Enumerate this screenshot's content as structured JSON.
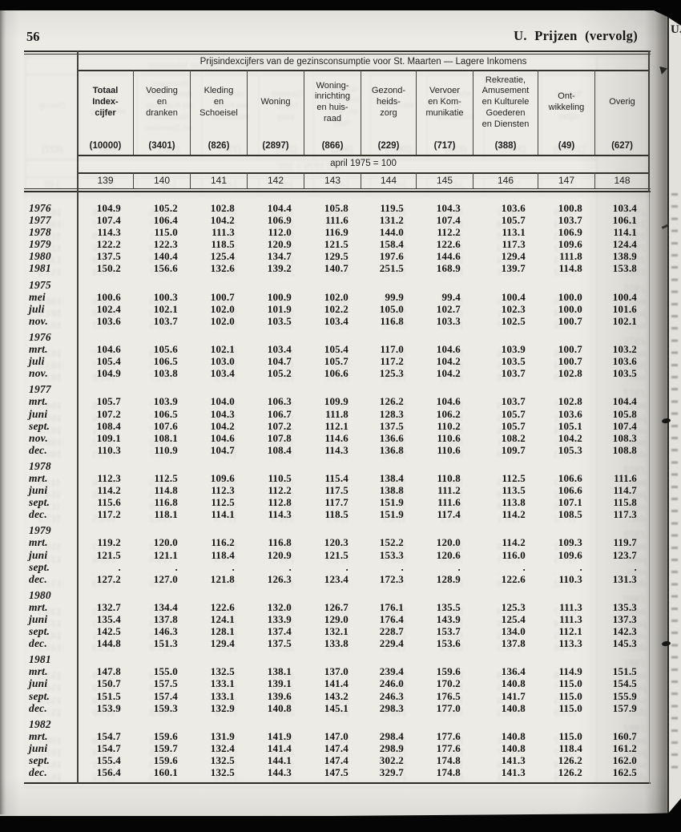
{
  "page": {
    "number": "56",
    "header": "U. Prijzen (vervolg)",
    "next_page_fragment": "U."
  },
  "colors": {
    "paper": "#edebe6",
    "ink": "#1b1b1b",
    "scan_bar": "#050505"
  },
  "table": {
    "title": "Prijsindexcijfers van de gezinsconsumptie voor St. Maarten — Lagere Inkomens",
    "base_note": "april 1975 = 100",
    "columns": [
      {
        "label": "Totaal\nIndex-\ncijfer",
        "weight": "(10000)",
        "code": "139",
        "bold": true
      },
      {
        "label": "Voeding\nen\ndranken",
        "weight": "(3401)",
        "code": "140"
      },
      {
        "label": "Kleding\nen\nSchoeisel",
        "weight": "(826)",
        "code": "141"
      },
      {
        "label": "Woning",
        "weight": "(2897)",
        "code": "142"
      },
      {
        "label": "Woning-\ninrichting\nen huis-\nraad",
        "weight": "(866)",
        "code": "143"
      },
      {
        "label": "Gezond-\nheids-\nzorg",
        "weight": "(229)",
        "code": "144"
      },
      {
        "label": "Vervoer\nen Kom-\nmunikatie",
        "weight": "(717)",
        "code": "145"
      },
      {
        "label": "Rekreatie,\nAmusement\nen Kulturele\nGoederen\nen Diensten",
        "weight": "(388)",
        "code": "146"
      },
      {
        "label": "Ont-\nwikkeling",
        "weight": "(49)",
        "code": "147"
      },
      {
        "label": "Overig",
        "weight": "(627)",
        "code": "148"
      }
    ],
    "row_groups": [
      {
        "year": "",
        "rows": [
          {
            "label": "1976",
            "values": [
              "104.9",
              "105.2",
              "102.8",
              "104.4",
              "105.8",
              "119.5",
              "104.3",
              "103.6",
              "100.8",
              "103.4"
            ]
          },
          {
            "label": "1977",
            "values": [
              "107.4",
              "106.4",
              "104.2",
              "106.9",
              "111.6",
              "131.2",
              "107.4",
              "105.7",
              "103.7",
              "106.1"
            ]
          },
          {
            "label": "1978",
            "values": [
              "114.3",
              "115.0",
              "111.3",
              "112.0",
              "116.9",
              "144.0",
              "112.2",
              "113.1",
              "106.9",
              "114.1"
            ]
          },
          {
            "label": "1979",
            "values": [
              "122.2",
              "122.3",
              "118.5",
              "120.9",
              "121.5",
              "158.4",
              "122.6",
              "117.3",
              "109.6",
              "124.4"
            ]
          },
          {
            "label": "1980",
            "values": [
              "137.5",
              "140.4",
              "125.4",
              "134.7",
              "129.5",
              "197.6",
              "144.6",
              "129.4",
              "111.8",
              "138.9"
            ]
          },
          {
            "label": "1981",
            "values": [
              "150.2",
              "156.6",
              "132.6",
              "139.2",
              "140.7",
              "251.5",
              "168.9",
              "139.7",
              "114.8",
              "153.8"
            ]
          }
        ]
      },
      {
        "year": "1975",
        "rows": [
          {
            "label": "mei",
            "values": [
              "100.6",
              "100.3",
              "100.7",
              "100.9",
              "102.0",
              "99.9",
              "99.4",
              "100.4",
              "100.0",
              "100.4"
            ]
          },
          {
            "label": "juli",
            "values": [
              "102.4",
              "102.1",
              "102.0",
              "101.9",
              "102.2",
              "105.0",
              "102.7",
              "102.3",
              "100.0",
              "101.6"
            ]
          },
          {
            "label": "nov.",
            "values": [
              "103.6",
              "103.7",
              "102.0",
              "103.5",
              "103.4",
              "116.8",
              "103.3",
              "102.5",
              "100.7",
              "102.1"
            ]
          }
        ]
      },
      {
        "year": "1976",
        "rows": [
          {
            "label": "mrt.",
            "values": [
              "104.6",
              "105.6",
              "102.1",
              "103.4",
              "105.4",
              "117.0",
              "104.6",
              "103.9",
              "100.7",
              "103.2"
            ]
          },
          {
            "label": "juli",
            "values": [
              "105.4",
              "106.5",
              "103.0",
              "104.7",
              "105.7",
              "117.2",
              "104.2",
              "103.5",
              "100.7",
              "103.6"
            ]
          },
          {
            "label": "nov.",
            "values": [
              "104.9",
              "103.8",
              "103.4",
              "105.2",
              "106.6",
              "125.3",
              "104.2",
              "103.7",
              "102.8",
              "103.5"
            ]
          }
        ]
      },
      {
        "year": "1977",
        "rows": [
          {
            "label": "mrt.",
            "values": [
              "105.7",
              "103.9",
              "104.0",
              "106.3",
              "109.9",
              "126.2",
              "104.6",
              "103.7",
              "102.8",
              "104.4"
            ]
          },
          {
            "label": "juni",
            "values": [
              "107.2",
              "106.5",
              "104.3",
              "106.7",
              "111.8",
              "128.3",
              "106.2",
              "105.7",
              "103.6",
              "105.8"
            ]
          },
          {
            "label": "sept.",
            "values": [
              "108.4",
              "107.6",
              "104.2",
              "107.2",
              "112.1",
              "137.5",
              "110.2",
              "105.7",
              "105.1",
              "107.4"
            ]
          },
          {
            "label": "nov.",
            "values": [
              "109.1",
              "108.1",
              "104.6",
              "107.8",
              "114.6",
              "136.6",
              "110.6",
              "108.2",
              "104.2",
              "108.3"
            ]
          },
          {
            "label": "dec.",
            "values": [
              "110.3",
              "110.9",
              "104.7",
              "108.4",
              "114.3",
              "136.8",
              "110.6",
              "109.7",
              "105.3",
              "108.8"
            ]
          }
        ]
      },
      {
        "year": "1978",
        "rows": [
          {
            "label": "mrt.",
            "values": [
              "112.3",
              "112.5",
              "109.6",
              "110.5",
              "115.4",
              "138.4",
              "110.8",
              "112.5",
              "106.6",
              "111.6"
            ]
          },
          {
            "label": "juni",
            "values": [
              "114.2",
              "114.8",
              "112.3",
              "112.2",
              "117.5",
              "138.8",
              "111.2",
              "113.5",
              "106.6",
              "114.7"
            ]
          },
          {
            "label": "sept.",
            "values": [
              "115.6",
              "116.8",
              "112.5",
              "112.8",
              "117.7",
              "151.9",
              "111.6",
              "113.8",
              "107.1",
              "115.8"
            ]
          },
          {
            "label": "dec.",
            "values": [
              "117.2",
              "118.1",
              "114.1",
              "114.3",
              "118.5",
              "151.9",
              "117.4",
              "114.2",
              "108.5",
              "117.3"
            ]
          }
        ]
      },
      {
        "year": "1979",
        "rows": [
          {
            "label": "mrt.",
            "values": [
              "119.2",
              "120.0",
              "116.2",
              "116.8",
              "120.3",
              "152.2",
              "120.0",
              "114.2",
              "109.3",
              "119.7"
            ]
          },
          {
            "label": "juni",
            "values": [
              "121.5",
              "121.1",
              "118.4",
              "120.9",
              "121.5",
              "153.3",
              "120.6",
              "116.0",
              "109.6",
              "123.7"
            ]
          },
          {
            "label": "sept.",
            "values": [
              ".",
              ".",
              ".",
              ".",
              ".",
              ".",
              ".",
              ".",
              ".",
              "."
            ]
          },
          {
            "label": "dec.",
            "values": [
              "127.2",
              "127.0",
              "121.8",
              "126.3",
              "123.4",
              "172.3",
              "128.9",
              "122.6",
              "110.3",
              "131.3"
            ]
          }
        ]
      },
      {
        "year": "1980",
        "rows": [
          {
            "label": "mrt.",
            "values": [
              "132.7",
              "134.4",
              "122.6",
              "132.0",
              "126.7",
              "176.1",
              "135.5",
              "125.3",
              "111.3",
              "135.3"
            ]
          },
          {
            "label": "juni",
            "values": [
              "135.4",
              "137.8",
              "124.1",
              "133.9",
              "129.0",
              "176.4",
              "143.9",
              "125.4",
              "111.3",
              "137.3"
            ]
          },
          {
            "label": "sept.",
            "values": [
              "142.5",
              "146.3",
              "128.1",
              "137.4",
              "132.1",
              "228.7",
              "153.7",
              "134.0",
              "112.1",
              "142.3"
            ]
          },
          {
            "label": "dec.",
            "values": [
              "144.8",
              "151.3",
              "129.4",
              "137.5",
              "133.8",
              "229.4",
              "153.6",
              "137.8",
              "113.3",
              "145.3"
            ]
          }
        ]
      },
      {
        "year": "1981",
        "rows": [
          {
            "label": "mrt.",
            "values": [
              "147.8",
              "155.0",
              "132.5",
              "138.1",
              "137.0",
              "239.4",
              "159.6",
              "136.4",
              "114.9",
              "151.5"
            ]
          },
          {
            "label": "juni",
            "values": [
              "150.7",
              "157.5",
              "133.1",
              "139.1",
              "141.4",
              "246.0",
              "170.2",
              "140.8",
              "115.0",
              "154.5"
            ]
          },
          {
            "label": "sept.",
            "values": [
              "151.5",
              "157.4",
              "133.1",
              "139.6",
              "143.2",
              "246.3",
              "176.5",
              "141.7",
              "115.0",
              "155.9"
            ]
          },
          {
            "label": "dec.",
            "values": [
              "153.9",
              "159.3",
              "132.9",
              "140.8",
              "145.1",
              "298.3",
              "177.0",
              "140.8",
              "115.0",
              "157.9"
            ]
          }
        ]
      },
      {
        "year": "1982",
        "rows": [
          {
            "label": "mrt.",
            "values": [
              "154.7",
              "159.6",
              "131.9",
              "141.9",
              "147.0",
              "298.4",
              "177.6",
              "140.8",
              "115.0",
              "160.7"
            ]
          },
          {
            "label": "juni",
            "values": [
              "154.7",
              "159.7",
              "132.4",
              "141.4",
              "147.4",
              "298.9",
              "177.6",
              "140.8",
              "118.4",
              "161.2"
            ]
          },
          {
            "label": "sept.",
            "values": [
              "155.4",
              "159.6",
              "132.5",
              "144.1",
              "147.4",
              "302.2",
              "174.8",
              "141.3",
              "126.2",
              "162.0"
            ]
          },
          {
            "label": "dec.",
            "values": [
              "156.4",
              "160.1",
              "132.5",
              "144.3",
              "147.5",
              "329.7",
              "174.8",
              "141.3",
              "126.2",
              "162.5"
            ]
          }
        ]
      }
    ]
  }
}
